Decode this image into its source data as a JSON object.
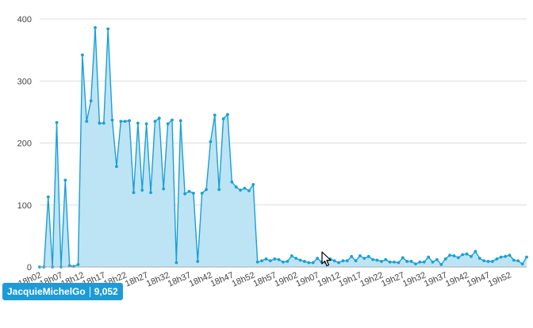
{
  "chart_data": {
    "type": "area",
    "title": "",
    "xlabel": "",
    "ylabel": "",
    "ylim": [
      0,
      400
    ],
    "yticks": [
      0,
      100,
      200,
      300,
      400
    ],
    "x_tick_labels": [
      "18h02",
      "18h07",
      "18h12",
      "18h17",
      "18h22",
      "18h27",
      "18h32",
      "18h37",
      "18h42",
      "18h47",
      "18h52",
      "18h57",
      "19h02",
      "19h07",
      "19h12",
      "19h17",
      "19h22",
      "19h27",
      "19h32",
      "19h37",
      "19h42",
      "19h47",
      "19h52"
    ],
    "grid": true,
    "legend": "none",
    "series": [
      {
        "values": [
          0,
          0,
          113,
          0,
          233,
          0,
          140,
          2,
          1,
          4,
          342,
          235,
          268,
          386,
          232,
          232,
          384,
          237,
          162,
          235,
          235,
          236,
          120,
          232,
          124,
          231,
          120,
          235,
          240,
          126,
          231,
          237,
          7,
          236,
          118,
          122,
          119,
          9,
          119,
          125,
          202,
          245,
          125,
          239,
          246,
          137,
          129,
          124,
          127,
          123,
          133,
          8,
          10,
          13,
          10,
          13,
          12,
          8,
          9,
          18,
          14,
          11,
          9,
          7,
          7,
          14,
          8,
          7,
          13,
          10,
          7,
          10,
          10,
          17,
          10,
          18,
          14,
          17,
          12,
          11,
          9,
          12,
          8,
          8,
          7,
          15,
          9,
          9,
          5,
          8,
          8,
          16,
          8,
          12,
          4,
          13,
          19,
          18,
          15,
          20,
          21,
          17,
          25,
          14,
          10,
          9,
          9,
          13,
          16,
          17,
          19,
          11,
          10,
          5,
          16
        ]
      }
    ]
  },
  "colors": {
    "line": "#1a9fd6",
    "fill": "#bde4f5",
    "grid": "#dddddd",
    "axis": "#aaaaaa",
    "tick_text": "#444444",
    "tag_bg": "#1e9bd7"
  },
  "tag": {
    "name": "JacquieMichelGo",
    "count": "9,052"
  }
}
